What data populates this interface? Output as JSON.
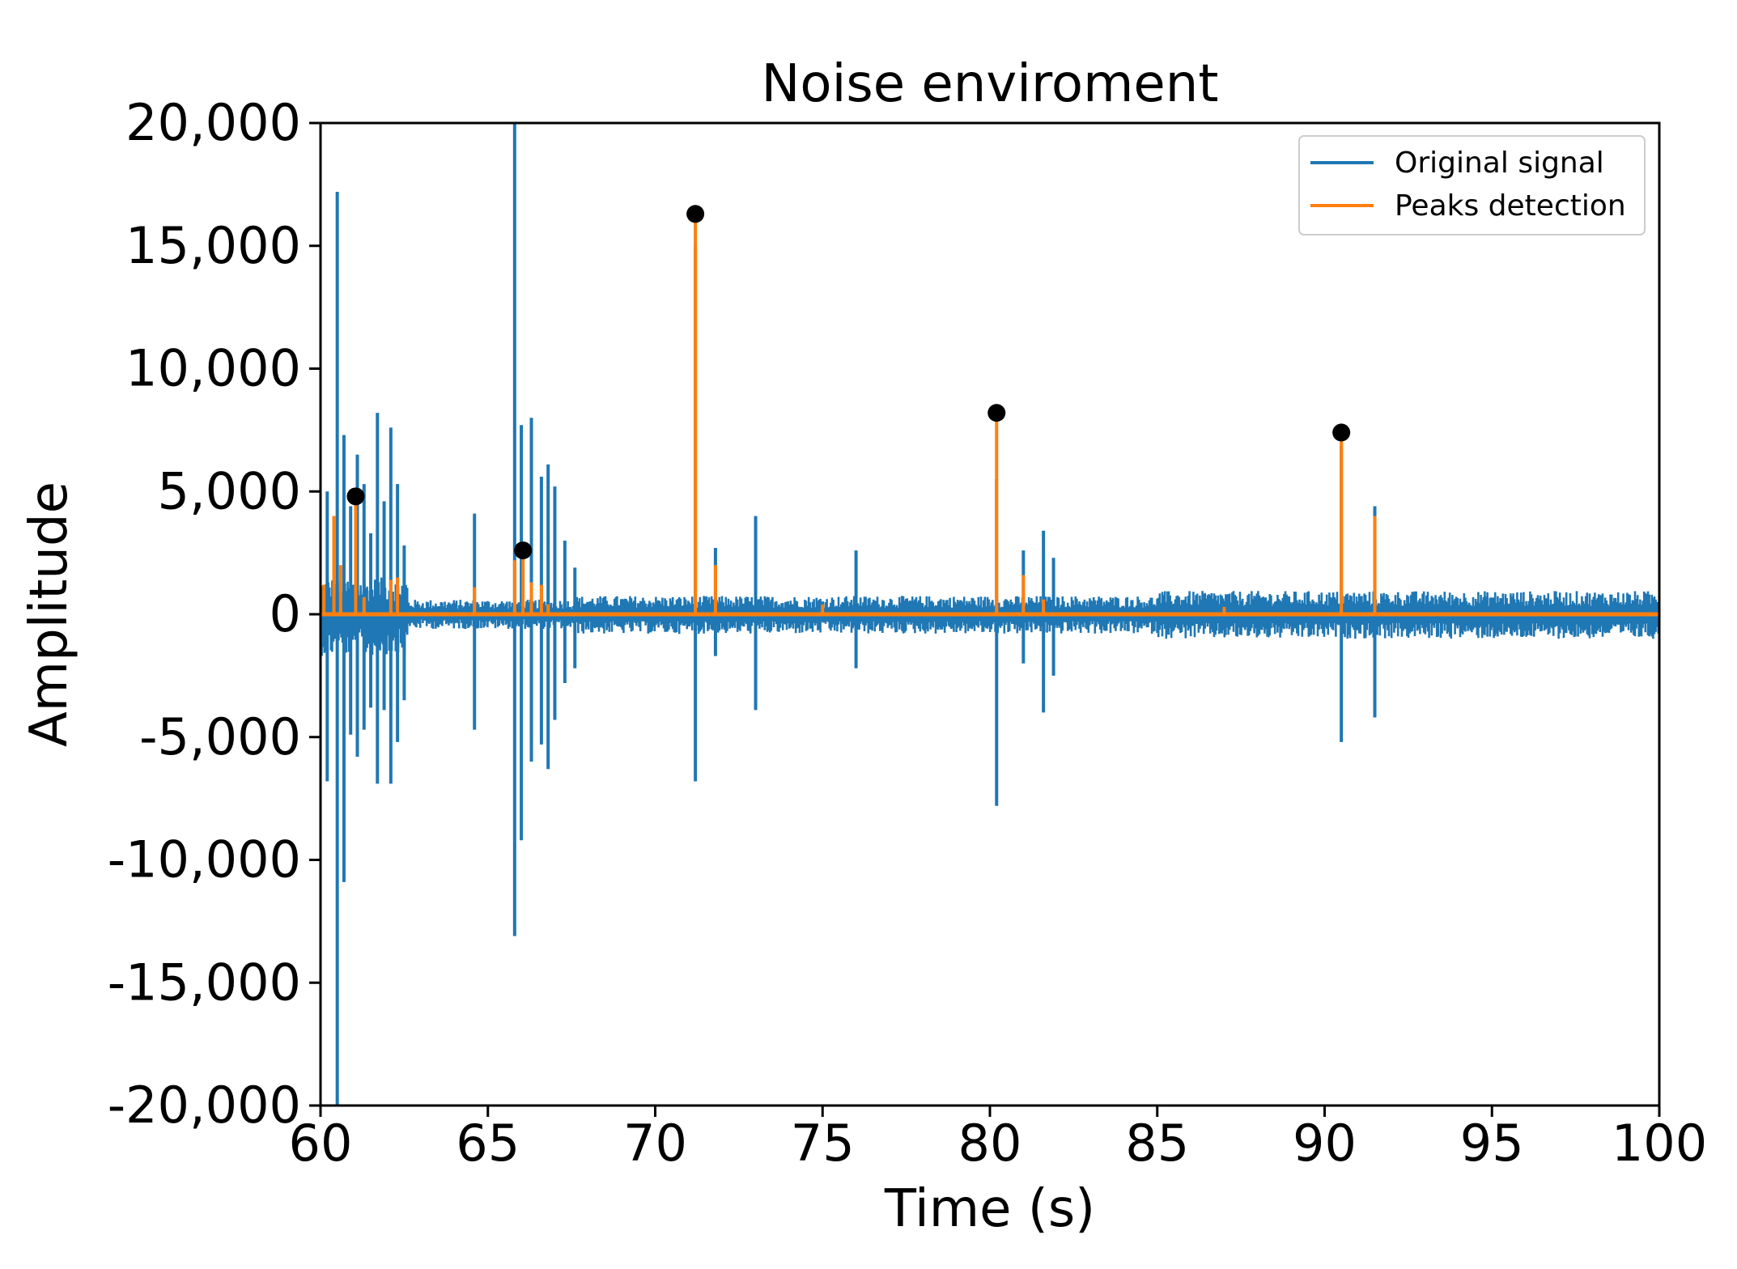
{
  "chart_data": {
    "type": "line",
    "title": "Noise enviroment",
    "xlabel": "Time (s)",
    "ylabel": "Amplitude",
    "xlim": [
      60,
      100
    ],
    "ylim": [
      -20000,
      20000
    ],
    "x_ticks": [
      60,
      65,
      70,
      75,
      80,
      85,
      90,
      95,
      100
    ],
    "x_tick_labels": [
      "60",
      "65",
      "70",
      "75",
      "80",
      "85",
      "90",
      "95",
      "100"
    ],
    "y_ticks": [
      20000,
      15000,
      10000,
      5000,
      0,
      -5000,
      -10000,
      -15000,
      -20000
    ],
    "y_tick_labels": [
      "20,000",
      "15,000",
      "10,000",
      "5,000",
      "0",
      "-5,000",
      "-10,000",
      "-15,000",
      "-20,000"
    ],
    "grid": false,
    "legend_position": "top-right",
    "series": [
      {
        "name": "Original signal",
        "color": "#1f77b4",
        "noise_band": [
          {
            "x_start": 60,
            "x_end": 62.6,
            "pos": 1500,
            "neg": -1700
          },
          {
            "x_start": 62.6,
            "x_end": 67.6,
            "pos": 600,
            "neg": -600
          },
          {
            "x_start": 67.6,
            "x_end": 85,
            "pos": 750,
            "neg": -800
          },
          {
            "x_start": 85,
            "x_end": 100,
            "pos": 950,
            "neg": -1000
          }
        ],
        "spikes": [
          {
            "x": 60.2,
            "pos": 5000,
            "neg": -6800
          },
          {
            "x": 60.5,
            "pos": 17200,
            "neg": -20000
          },
          {
            "x": 60.7,
            "pos": 7300,
            "neg": -10900
          },
          {
            "x": 60.9,
            "pos": 4400,
            "neg": -4900
          },
          {
            "x": 61.1,
            "pos": 6500,
            "neg": -5800
          },
          {
            "x": 61.3,
            "pos": 5300,
            "neg": -4700
          },
          {
            "x": 61.5,
            "pos": 3300,
            "neg": -3800
          },
          {
            "x": 61.7,
            "pos": 8200,
            "neg": -6900
          },
          {
            "x": 61.9,
            "pos": 4600,
            "neg": -3900
          },
          {
            "x": 62.1,
            "pos": 7600,
            "neg": -6900
          },
          {
            "x": 62.3,
            "pos": 5300,
            "neg": -5200
          },
          {
            "x": 62.5,
            "pos": 2800,
            "neg": -3500
          },
          {
            "x": 64.6,
            "pos": 4100,
            "neg": -4700
          },
          {
            "x": 65.8,
            "pos": 20000,
            "neg": -13100
          },
          {
            "x": 66.0,
            "pos": 7700,
            "neg": -9200
          },
          {
            "x": 66.3,
            "pos": 8000,
            "neg": -6000
          },
          {
            "x": 66.6,
            "pos": 5600,
            "neg": -5300
          },
          {
            "x": 66.8,
            "pos": 6100,
            "neg": -6300
          },
          {
            "x": 67.0,
            "pos": 5200,
            "neg": -4300
          },
          {
            "x": 67.3,
            "pos": 3000,
            "neg": -2800
          },
          {
            "x": 67.6,
            "pos": 1900,
            "neg": -2200
          },
          {
            "x": 71.2,
            "pos": 15000,
            "neg": -6800
          },
          {
            "x": 71.8,
            "pos": 2700,
            "neg": -1700
          },
          {
            "x": 73.0,
            "pos": 4000,
            "neg": -3900
          },
          {
            "x": 76.0,
            "pos": 2600,
            "neg": -2200
          },
          {
            "x": 80.2,
            "pos": 5500,
            "neg": -7800
          },
          {
            "x": 81.0,
            "pos": 2600,
            "neg": -2000
          },
          {
            "x": 81.6,
            "pos": 3400,
            "neg": -4000
          },
          {
            "x": 81.9,
            "pos": 2300,
            "neg": -2500
          },
          {
            "x": 90.5,
            "pos": 6900,
            "neg": -5200
          },
          {
            "x": 91.5,
            "pos": 4400,
            "neg": -4200
          }
        ]
      },
      {
        "name": "Peaks detection",
        "color": "#ff7f0e",
        "spikes": [
          {
            "x": 60.1,
            "value": 1200
          },
          {
            "x": 60.4,
            "value": 4000
          },
          {
            "x": 60.6,
            "value": 2000
          },
          {
            "x": 61.05,
            "value": 4800
          },
          {
            "x": 61.3,
            "value": 700
          },
          {
            "x": 62.1,
            "value": 1400
          },
          {
            "x": 62.3,
            "value": 1500
          },
          {
            "x": 64.6,
            "value": 1100
          },
          {
            "x": 65.8,
            "value": 2200
          },
          {
            "x": 66.05,
            "value": 2600
          },
          {
            "x": 66.3,
            "value": 1300
          },
          {
            "x": 66.6,
            "value": 1200
          },
          {
            "x": 66.8,
            "value": 400
          },
          {
            "x": 71.2,
            "value": 16300
          },
          {
            "x": 71.8,
            "value": 2000
          },
          {
            "x": 75.0,
            "value": 400
          },
          {
            "x": 80.2,
            "value": 8200
          },
          {
            "x": 81.0,
            "value": 1600
          },
          {
            "x": 81.6,
            "value": 600
          },
          {
            "x": 87.0,
            "value": 300
          },
          {
            "x": 90.5,
            "value": 7400
          },
          {
            "x": 91.5,
            "value": 4000
          }
        ]
      }
    ],
    "detected_peaks": [
      {
        "x": 61.05,
        "y": 4800
      },
      {
        "x": 66.05,
        "y": 2600
      },
      {
        "x": 71.2,
        "y": 16300
      },
      {
        "x": 80.2,
        "y": 8200
      },
      {
        "x": 90.5,
        "y": 7400
      }
    ],
    "marker_color": "#000000"
  }
}
